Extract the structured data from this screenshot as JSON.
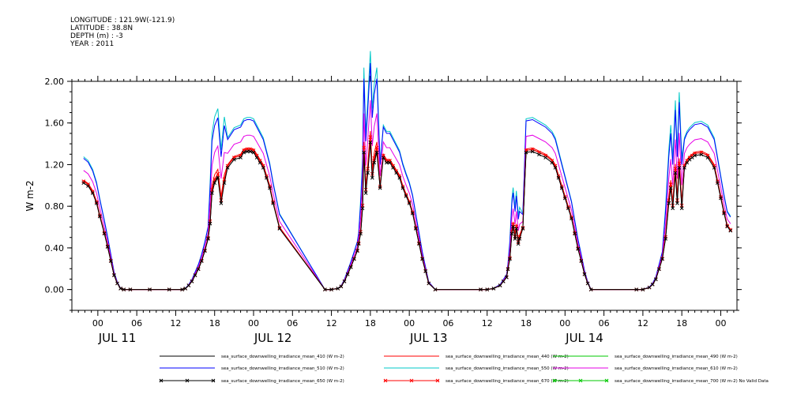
{
  "header": {
    "longitude": "LONGITUDE : 121.9W(-121.9)",
    "latitude": "LATITUDE : 38.8N",
    "depth": "DEPTH (m) : -3",
    "year": "YEAR : 2011"
  },
  "chart_data": {
    "type": "line",
    "title": "",
    "xlabel": "",
    "ylabel": "W m-2",
    "ylim": [
      -0.2,
      2.0
    ],
    "xlim_hours": [
      -4,
      86
    ],
    "x_unit": "hours from 2011-07-11 00:00",
    "y_ticks": [
      "0.00",
      "0.40",
      "0.80",
      "1.20",
      "1.60",
      "2.00"
    ],
    "y_tick_values": [
      0.0,
      0.4,
      0.8,
      1.2,
      1.6,
      2.0
    ],
    "x_ticks": [
      {
        "hour": 0,
        "label": "00"
      },
      {
        "hour": 6,
        "label": "06"
      },
      {
        "hour": 12,
        "label": "12"
      },
      {
        "hour": 18,
        "label": "18"
      },
      {
        "hour": 24,
        "label": "00"
      },
      {
        "hour": 30,
        "label": "06"
      },
      {
        "hour": 36,
        "label": "12"
      },
      {
        "hour": 42,
        "label": "18"
      },
      {
        "hour": 48,
        "label": "00"
      },
      {
        "hour": 54,
        "label": "06"
      },
      {
        "hour": 60,
        "label": "12"
      },
      {
        "hour": 66,
        "label": "18"
      },
      {
        "hour": 72,
        "label": "00"
      },
      {
        "hour": 78,
        "label": "06"
      },
      {
        "hour": 84,
        "label": "12"
      },
      {
        "hour": 90,
        "label": "18"
      },
      {
        "hour": 96,
        "label": "00"
      }
    ],
    "day_labels": [
      {
        "hour": 3,
        "label": "JUL 11"
      },
      {
        "hour": 27,
        "label": "JUL 12"
      },
      {
        "hour": 51,
        "label": "JUL 13"
      },
      {
        "hour": 75,
        "label": "JUL 14"
      }
    ],
    "grid": false,
    "legend_position": "bottom",
    "base_profile": {
      "x": [
        -2.2,
        -1.5,
        -0.8,
        -0.2,
        0.3,
        1.0,
        1.5,
        2.0,
        2.5,
        3.0,
        3.5,
        4.0,
        5.0,
        8.0,
        11.0,
        13.0,
        13.5,
        14.0,
        14.5,
        15.0,
        15.5,
        16.0,
        16.5,
        17.0,
        17.3,
        17.6,
        18.0,
        18.5,
        19.0,
        19.5,
        20.0,
        21.0,
        22.0,
        22.5,
        23.0,
        23.5,
        24.0,
        24.5,
        25.0,
        25.5,
        26.0,
        26.5,
        27.0,
        28.0,
        35.0,
        36.0,
        37.0,
        37.5,
        38.0,
        38.5,
        39.0,
        39.5,
        40.0,
        40.2,
        40.5,
        40.8,
        41.0,
        41.3,
        41.6,
        42.0,
        42.3,
        42.6,
        43.0,
        43.5,
        44.0,
        44.5,
        45.0,
        45.5,
        46.0,
        46.5,
        47.0,
        47.5,
        48.0,
        48.5,
        49.0,
        49.5,
        50.0,
        50.5,
        51.0,
        52.0,
        59.0,
        60.0,
        61.0,
        62.0,
        62.5,
        63.0,
        63.2,
        63.5,
        63.8,
        64.0,
        64.3,
        64.5,
        64.8,
        65.0,
        65.5,
        66.0,
        67.0,
        68.0,
        69.0,
        70.0,
        70.5,
        71.0,
        71.5,
        72.0,
        72.5,
        73.0,
        73.5,
        74.0,
        74.5,
        75.0,
        75.5,
        76.0,
        83.0,
        84.0,
        85.0,
        85.5,
        86.0,
        86.5,
        87.0,
        87.5,
        88.0,
        88.3,
        88.6,
        89.0,
        89.3,
        89.6,
        90.0,
        90.4,
        90.8,
        91.2,
        91.6,
        92.0,
        93.0,
        94.0,
        95.0,
        95.5,
        96.0,
        96.5,
        97.0,
        97.5
      ],
      "y": [
        1.05,
        1.02,
        0.95,
        0.85,
        0.72,
        0.55,
        0.42,
        0.28,
        0.14,
        0.06,
        0.01,
        0.0,
        0.0,
        0.0,
        0.0,
        0.0,
        0.01,
        0.04,
        0.08,
        0.14,
        0.2,
        0.28,
        0.38,
        0.5,
        0.65,
        0.95,
        1.05,
        1.1,
        0.85,
        1.05,
        1.2,
        1.28,
        1.3,
        1.35,
        1.36,
        1.36,
        1.35,
        1.3,
        1.25,
        1.2,
        1.1,
        1.0,
        0.85,
        0.6,
        0.0,
        0.0,
        0.01,
        0.03,
        0.08,
        0.15,
        0.22,
        0.3,
        0.38,
        0.45,
        0.55,
        0.8,
        1.35,
        0.95,
        1.15,
        1.45,
        1.1,
        1.25,
        1.35,
        1.0,
        1.3,
        1.25,
        1.25,
        1.2,
        1.15,
        1.1,
        1.0,
        0.92,
        0.85,
        0.75,
        0.6,
        0.45,
        0.3,
        0.18,
        0.06,
        0.0,
        0.0,
        0.0,
        0.01,
        0.04,
        0.08,
        0.12,
        0.2,
        0.3,
        0.55,
        0.62,
        0.5,
        0.6,
        0.45,
        0.5,
        0.6,
        1.35,
        1.36,
        1.33,
        1.3,
        1.25,
        1.2,
        1.1,
        1.0,
        0.9,
        0.8,
        0.7,
        0.55,
        0.4,
        0.28,
        0.15,
        0.06,
        0.0,
        0.0,
        0.0,
        0.02,
        0.05,
        0.1,
        0.2,
        0.3,
        0.5,
        0.85,
        1.0,
        0.8,
        1.15,
        0.85,
        1.2,
        0.8,
        1.2,
        1.25,
        1.28,
        1.3,
        1.32,
        1.33,
        1.3,
        1.2,
        1.05,
        0.9,
        0.75,
        0.62,
        0.58
      ],
      "spikes": [
        17.3,
        17.6,
        18.0,
        18.5,
        19.0,
        19.5,
        40.5,
        40.8,
        41.0,
        41.3,
        41.6,
        42.0,
        42.3,
        42.6,
        43.0,
        63.5,
        63.8,
        64.0,
        64.3,
        64.5,
        64.8,
        65.0,
        87.5,
        88.0,
        88.3,
        88.6,
        89.0,
        89.3,
        89.6,
        90.0
      ]
    },
    "series": [
      {
        "name": "sea_surface_downwelling_irradiance_mean_410 (W m-2)",
        "color": "#000000",
        "scale": 0.99,
        "marker": "none",
        "spike_scale": 1.0
      },
      {
        "name": "sea_surface_downwelling_irradiance_mean_440 (W m-2)",
        "color": "#ff0000",
        "scale": 1.0,
        "marker": "none",
        "spike_scale": 1.05
      },
      {
        "name": "sea_surface_downwelling_irradiance_mean_490 (W m-2)",
        "color": "#00c800",
        "scale": 1.0,
        "marker": "none",
        "spike_scale": 1.0,
        "has_data": false
      },
      {
        "name": "sea_surface_downwelling_irradiance_mean_510 (W m-2)",
        "color": "#0000ff",
        "scale": 1.2,
        "marker": "none",
        "spike_scale": 1.25
      },
      {
        "name": "sea_surface_downwelling_irradiance_mean_550 (W m-2)",
        "color": "#00c8c8",
        "scale": 1.215,
        "marker": "none",
        "spike_scale": 1.3
      },
      {
        "name": "sea_surface_downwelling_irradiance_mean_610 (W m-2)",
        "color": "#e600e6",
        "scale": 1.09,
        "marker": "none",
        "spike_scale": 1.15
      },
      {
        "name": "sea_surface_downwelling_irradiance_mean_650 (W m-2)",
        "color": "#000000",
        "scale": 0.975,
        "marker": "x",
        "spike_scale": 1.0
      },
      {
        "name": "sea_surface_downwelling_irradiance_mean_670 (W m-2)",
        "color": "#ff0000",
        "scale": 0.99,
        "marker": "x",
        "spike_scale": 1.02
      },
      {
        "name": "sea_surface_downwelling_irradiance_mean_700 (W m-2) No Valid Data",
        "color": "#00c800",
        "scale": 1.0,
        "marker": "x",
        "spike_scale": 1.0,
        "has_data": false
      }
    ]
  }
}
